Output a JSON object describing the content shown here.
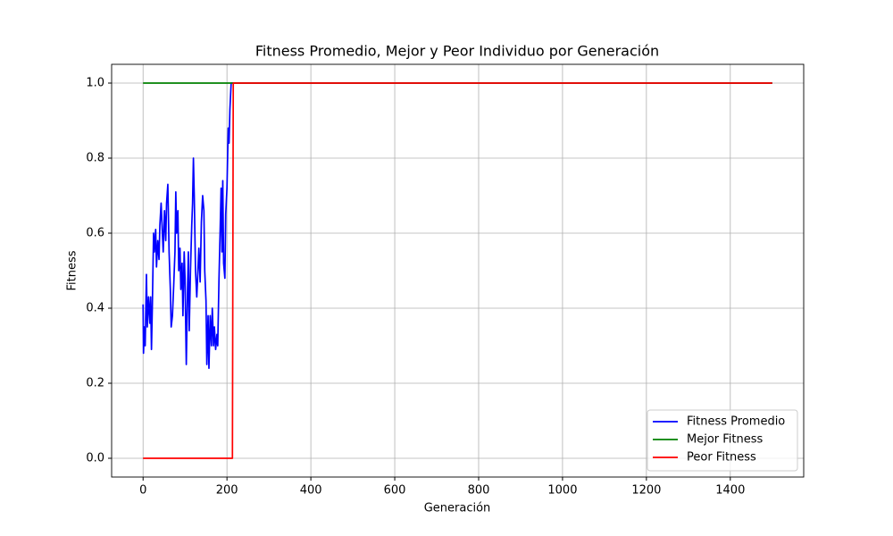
{
  "chart_data": {
    "type": "line",
    "title": "Fitness Promedio, Mejor y Peor Individuo por Generación",
    "x_label": "Generación",
    "y_label": "Fitness",
    "xlim": [
      -75,
      1575
    ],
    "xticks": [
      0,
      200,
      400,
      600,
      800,
      1000,
      1200,
      1400
    ],
    "ylim": [
      -0.05,
      1.05
    ],
    "yticks": [
      {
        "value": 0,
        "label": "0.0"
      },
      {
        "value": 0.2,
        "label": "0.2"
      },
      {
        "value": 0.4,
        "label": "0.4"
      },
      {
        "value": 0.6,
        "label": "0.6"
      },
      {
        "value": 0.8,
        "label": "0.8"
      },
      {
        "value": 1,
        "label": "1.0"
      }
    ],
    "grid": true,
    "legend": "lower right",
    "series": [
      {
        "name": "Fitness Promedio",
        "color": "#0000ff",
        "x": [
          0,
          1,
          3,
          5,
          8,
          10,
          13,
          16,
          18,
          20,
          22,
          25,
          27,
          30,
          32,
          35,
          38,
          40,
          43,
          46,
          48,
          51,
          54,
          56,
          59,
          62,
          65,
          67,
          70,
          73,
          76,
          78,
          80,
          83,
          85,
          88,
          90,
          93,
          95,
          98,
          100,
          103,
          106,
          108,
          110,
          113,
          116,
          118,
          120,
          122,
          125,
          128,
          130,
          133,
          136,
          139,
          142,
          145,
          147,
          150,
          152,
          155,
          157,
          160,
          163,
          165,
          168,
          170,
          173,
          176,
          178,
          181,
          184,
          186,
          188,
          190,
          192,
          195,
          197,
          200,
          203,
          205,
          207,
          210,
          213,
          1500
        ],
        "values": [
          0.41,
          0.28,
          0.35,
          0.3,
          0.49,
          0.35,
          0.43,
          0.36,
          0.43,
          0.29,
          0.4,
          0.6,
          0.55,
          0.61,
          0.51,
          0.58,
          0.53,
          0.62,
          0.68,
          0.6,
          0.55,
          0.66,
          0.58,
          0.68,
          0.73,
          0.55,
          0.45,
          0.35,
          0.38,
          0.46,
          0.55,
          0.71,
          0.6,
          0.66,
          0.5,
          0.56,
          0.45,
          0.52,
          0.38,
          0.55,
          0.48,
          0.25,
          0.45,
          0.55,
          0.34,
          0.5,
          0.62,
          0.68,
          0.8,
          0.7,
          0.5,
          0.43,
          0.48,
          0.56,
          0.47,
          0.63,
          0.7,
          0.66,
          0.5,
          0.42,
          0.25,
          0.38,
          0.24,
          0.38,
          0.3,
          0.4,
          0.3,
          0.35,
          0.29,
          0.33,
          0.3,
          0.48,
          0.62,
          0.72,
          0.55,
          0.74,
          0.52,
          0.48,
          0.65,
          0.72,
          0.88,
          0.84,
          0.93,
          1.0,
          1.0,
          1.0
        ]
      },
      {
        "name": "Mejor Fitness",
        "color": "#008000",
        "x": [
          0,
          1500
        ],
        "values": [
          1,
          1
        ]
      },
      {
        "name": "Peor Fitness",
        "color": "#ff0000",
        "x": [
          0,
          213,
          215,
          1500
        ],
        "values": [
          0,
          0,
          1,
          1
        ]
      }
    ]
  }
}
